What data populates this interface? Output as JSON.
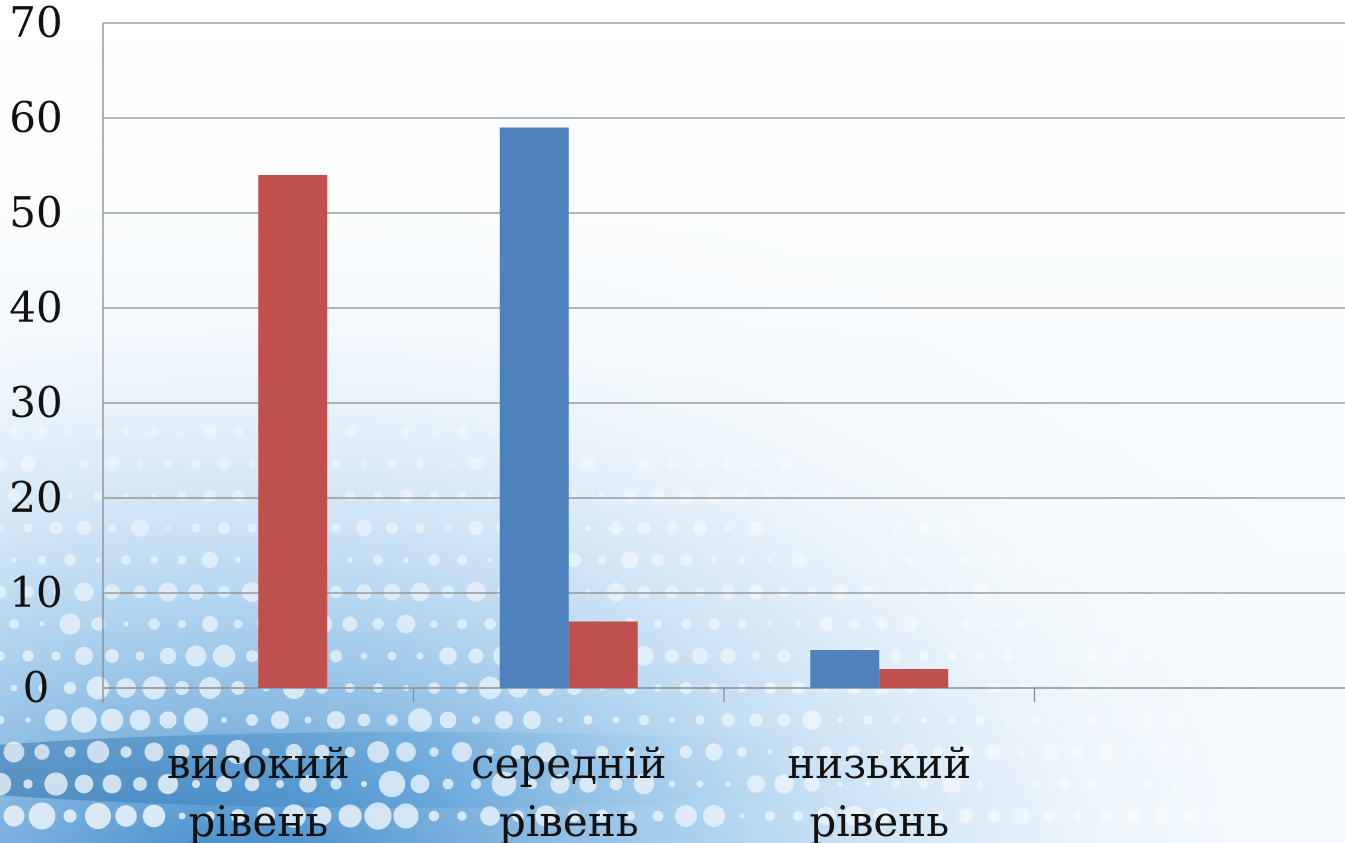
{
  "chart_data": {
    "type": "bar",
    "categories": [
      [
        "високий",
        "рівень"
      ],
      [
        "середній",
        "рівень"
      ],
      [
        "низький",
        "рівень"
      ],
      [
        "",
        ""
      ]
    ],
    "series": [
      {
        "values": [
          0,
          59,
          4,
          null
        ],
        "color": "#4F81BD"
      },
      {
        "values": [
          54,
          7,
          2,
          null
        ],
        "color": "#C0504D"
      }
    ],
    "ylim": [
      0,
      70
    ],
    "yticks": [
      0,
      10,
      20,
      30,
      40,
      50,
      60,
      70
    ],
    "grid": true,
    "legend": "none",
    "background": "light-blue dotted pattern fading from lower-left"
  }
}
